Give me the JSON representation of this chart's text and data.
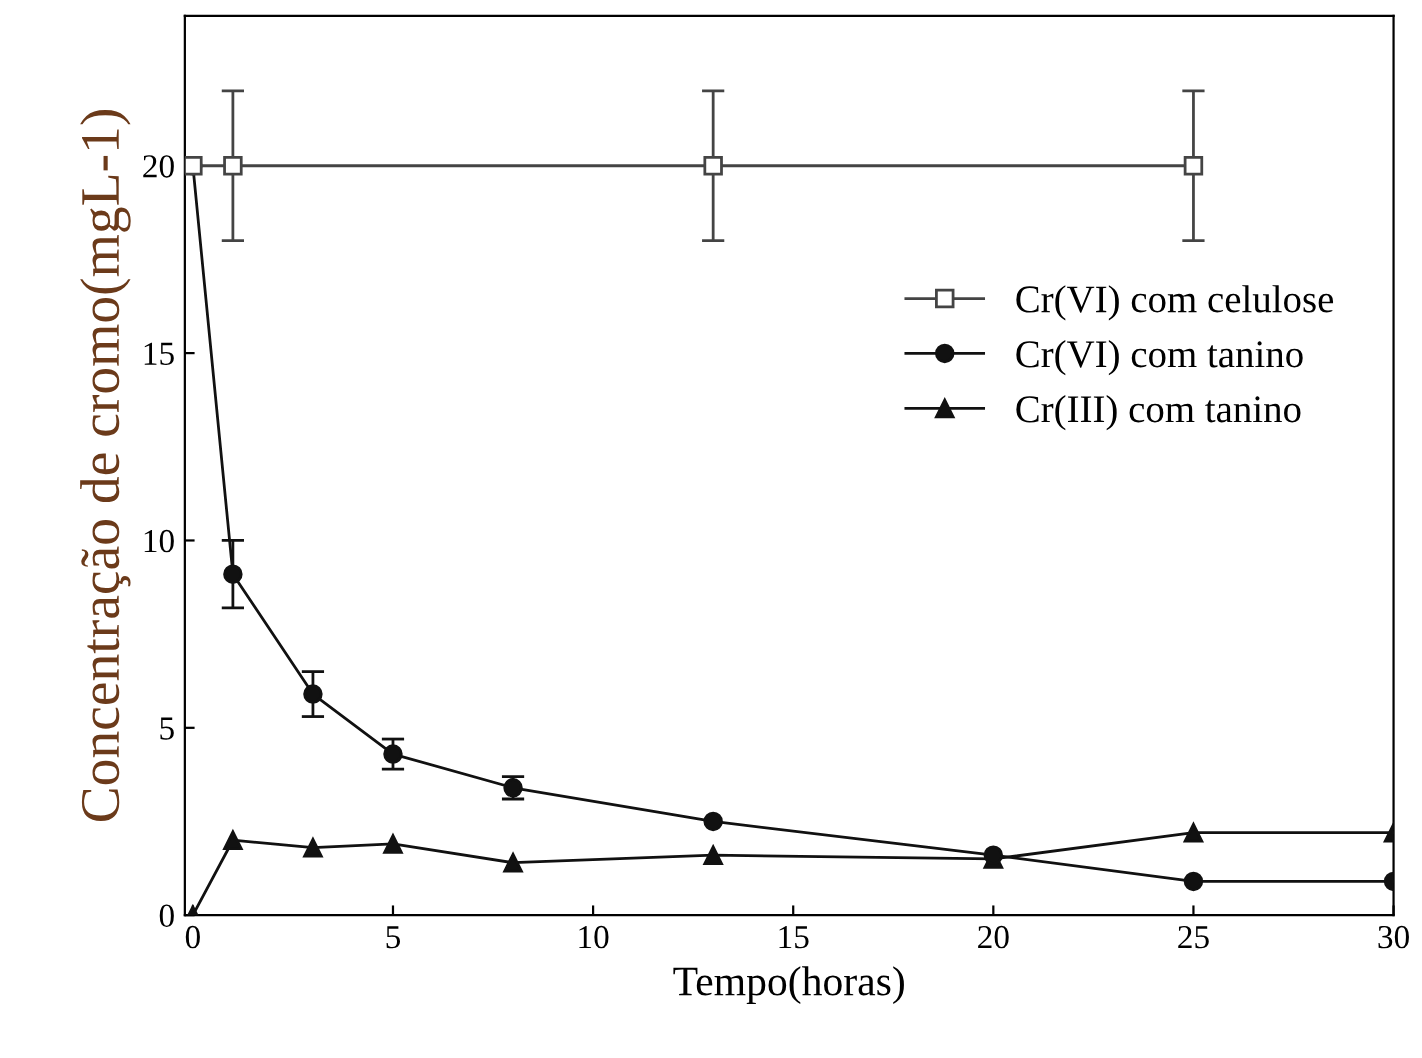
{
  "chart_data": {
    "type": "line",
    "xlabel": "Tempo(horas)",
    "ylabel": "Concentração de cromo(mgL-1)",
    "xlim": [
      -0.2,
      30
    ],
    "ylim": [
      0,
      24
    ],
    "xticks": [
      0,
      5,
      10,
      15,
      20,
      25,
      30
    ],
    "yticks": [
      0,
      5,
      10,
      15,
      20
    ],
    "grid": false,
    "legend": "right",
    "line_style": "solid",
    "series": [
      {
        "name": "Cr(VI) com celulose",
        "color": "#444444",
        "marker": "square",
        "x": [
          0,
          1,
          13,
          25
        ],
        "values": [
          20,
          20,
          20,
          20
        ],
        "errors": [
          null,
          2,
          2,
          2
        ]
      },
      {
        "name": "Cr(VI) com tanino",
        "color": "#111111",
        "marker": "circle",
        "x": [
          0,
          1,
          3,
          5,
          8,
          13,
          20,
          25,
          30
        ],
        "values": [
          20,
          9.1,
          5.9,
          4.3,
          3.4,
          2.5,
          1.6,
          0.9,
          0.9
        ],
        "errors": [
          null,
          0.9,
          0.6,
          0.4,
          0.3,
          null,
          null,
          null,
          null
        ]
      },
      {
        "name": "Cr(III) com tanino",
        "color": "#111111",
        "marker": "triangle",
        "x": [
          0,
          1,
          3,
          5,
          8,
          13,
          20,
          25,
          30
        ],
        "values": [
          0,
          2.0,
          1.8,
          1.9,
          1.4,
          1.6,
          1.5,
          2.2,
          2.2
        ]
      }
    ]
  }
}
